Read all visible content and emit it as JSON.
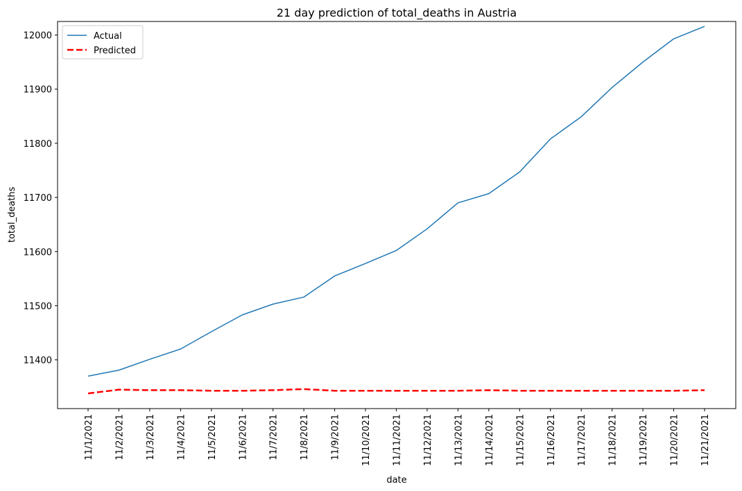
{
  "chart_data": {
    "type": "line",
    "title": "21 day prediction of total_deaths in Austria",
    "xlabel": "date",
    "ylabel": "total_deaths",
    "x": [
      "11/1/2021",
      "11/2/2021",
      "11/3/2021",
      "11/4/2021",
      "11/5/2021",
      "11/6/2021",
      "11/7/2021",
      "11/8/2021",
      "11/9/2021",
      "11/10/2021",
      "11/11/2021",
      "11/12/2021",
      "11/13/2021",
      "11/14/2021",
      "11/15/2021",
      "11/16/2021",
      "11/17/2021",
      "11/18/2021",
      "11/19/2021",
      "11/20/2021",
      "11/21/2021"
    ],
    "ylim": [
      11310,
      12025
    ],
    "yticks": [
      11400,
      11500,
      11600,
      11700,
      11800,
      11900,
      12000
    ],
    "grid": false,
    "legend_position": "top-left",
    "series": [
      {
        "name": "Actual",
        "color": "#1f77b4",
        "style": "solid",
        "values": [
          11370,
          11381,
          11401,
          11420,
          11452,
          11483,
          11503,
          11516,
          11555,
          11578,
          11602,
          11642,
          11690,
          11707,
          11747,
          11808,
          11849,
          11903,
          11950,
          11993,
          12016
        ]
      },
      {
        "name": "Predicted",
        "color": "#ff0000",
        "style": "dashed",
        "values": [
          11338,
          11345,
          11344,
          11344,
          11343,
          11343,
          11344,
          11346,
          11343,
          11343,
          11343,
          11343,
          11343,
          11344,
          11343,
          11343,
          11343,
          11343,
          11343,
          11343,
          11344
        ]
      }
    ]
  }
}
